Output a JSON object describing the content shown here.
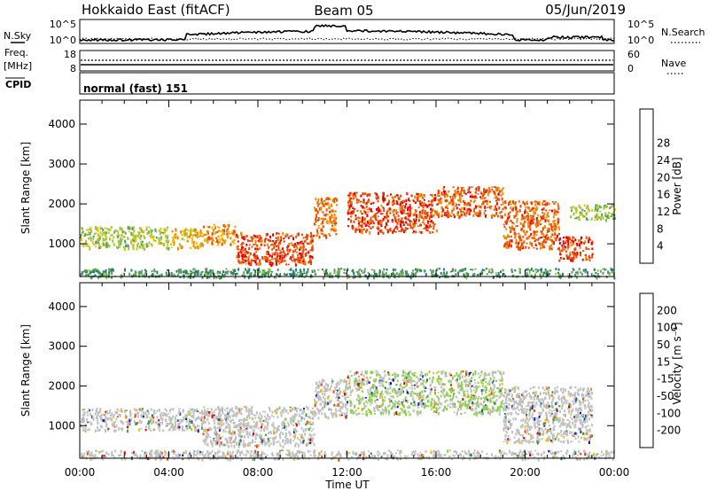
{
  "header": {
    "station": "Hokkaido East (fitACF)",
    "beam": "Beam 05",
    "date": "05/Jun/2019"
  },
  "summary_panel": {
    "left_label_sky": "N.Sky",
    "left_label_freq": "Freq.",
    "left_label_freq_unit": "[MHz]",
    "left_label_cpid": "CPID",
    "right_label_search": "N.Search",
    "right_label_nave": "Nave",
    "sky_ticks": [
      "10^5",
      "10^0"
    ],
    "freq_ticks": [
      "18",
      "8"
    ],
    "search_ticks": [
      "10^5",
      "10^0"
    ],
    "nave_ticks": [
      "60",
      "0"
    ],
    "cpid_text": "normal (fast) 151"
  },
  "colors": {
    "power_scale": [
      "#1010e0",
      "#1e3fa0",
      "#2a7d6a",
      "#5aa05a",
      "#9cc83c",
      "#f0c000",
      "#f08800",
      "#f04800",
      "#e80000"
    ],
    "velocity_scale": [
      "#e00000",
      "#f04800",
      "#f08800",
      "#f0c000",
      "#c8c8c8",
      "#8bd04a",
      "#3ca03c",
      "#2a5aa0",
      "#1010c0"
    ],
    "ground_scatter": "#c0c0c0"
  },
  "chart_data": [
    {
      "type": "heatmap",
      "title": "",
      "parameter": "Power",
      "ylabel": "Slant Range [km]",
      "xlabel": "",
      "xlim": [
        "00:00",
        "00:00"
      ],
      "ylim": [
        180,
        4600
      ],
      "x_ticks": [
        "00:00",
        "04:00",
        "08:00",
        "12:00",
        "16:00",
        "20:00",
        "00:00"
      ],
      "y_ticks": [
        1000,
        2000,
        3000,
        4000
      ],
      "colorbar": {
        "label": "Power [dB]",
        "ticks": [
          4,
          8,
          12,
          16,
          20,
          24,
          28
        ],
        "range": [
          0,
          30
        ]
      },
      "scatter_bands": [
        {
          "t_start": 0.0,
          "t_end": 4.0,
          "range_low": 900,
          "range_high": 1450,
          "level": 15
        },
        {
          "t_start": 4.0,
          "t_end": 5.5,
          "range_low": 900,
          "range_high": 1400,
          "level": 20
        },
        {
          "t_start": 5.5,
          "t_end": 7.0,
          "range_low": 1000,
          "range_high": 1500,
          "level": 22
        },
        {
          "t_start": 7.0,
          "t_end": 10.5,
          "range_low": 500,
          "range_high": 1300,
          "level": 27
        },
        {
          "t_start": 10.5,
          "t_end": 11.5,
          "range_low": 1200,
          "range_high": 2200,
          "level": 24
        },
        {
          "t_start": 12.0,
          "t_end": 16.0,
          "range_low": 1300,
          "range_high": 2300,
          "level": 27
        },
        {
          "t_start": 16.0,
          "t_end": 19.0,
          "range_low": 1700,
          "range_high": 2450,
          "level": 26
        },
        {
          "t_start": 19.0,
          "t_end": 21.5,
          "range_low": 900,
          "range_high": 2100,
          "level": 25
        },
        {
          "t_start": 21.5,
          "t_end": 23.0,
          "range_low": 600,
          "range_high": 1200,
          "level": 27
        },
        {
          "t_start": 22.0,
          "t_end": 24.0,
          "range_low": 1600,
          "range_high": 2000,
          "level": 14
        },
        {
          "t_start": 0.0,
          "t_end": 24.0,
          "range_low": 180,
          "range_high": 400,
          "level": 10
        }
      ]
    },
    {
      "type": "heatmap",
      "title": "",
      "parameter": "Velocity",
      "ylabel": "Slant Range [km]",
      "xlabel": "Time UT",
      "xlim": [
        "00:00",
        "00:00"
      ],
      "ylim": [
        180,
        4600
      ],
      "x_ticks": [
        "00:00",
        "04:00",
        "08:00",
        "12:00",
        "16:00",
        "20:00",
        "00:00"
      ],
      "y_ticks": [
        1000,
        2000,
        3000,
        4000
      ],
      "colorbar": {
        "label": "Velocity [m s⁻¹]",
        "ticks": [
          200,
          100,
          50,
          15,
          -15,
          -50,
          -100,
          -200
        ]
      },
      "scatter_bands": [
        {
          "t_start": 0.0,
          "t_end": 5.5,
          "range_low": 900,
          "range_high": 1450,
          "level": 0
        },
        {
          "t_start": 5.5,
          "t_end": 10.5,
          "range_low": 500,
          "range_high": 1500,
          "level": 0
        },
        {
          "t_start": 10.5,
          "t_end": 12.0,
          "range_low": 1200,
          "range_high": 2200,
          "level": 0
        },
        {
          "t_start": 12.0,
          "t_end": 19.0,
          "range_low": 1300,
          "range_high": 2400,
          "level": 20
        },
        {
          "t_start": 19.0,
          "t_end": 23.0,
          "range_low": 600,
          "range_high": 2000,
          "level": 0
        },
        {
          "t_start": 0.0,
          "t_end": 24.0,
          "range_low": 180,
          "range_high": 400,
          "level": 0
        }
      ]
    }
  ],
  "x_axis_label": "Time UT"
}
